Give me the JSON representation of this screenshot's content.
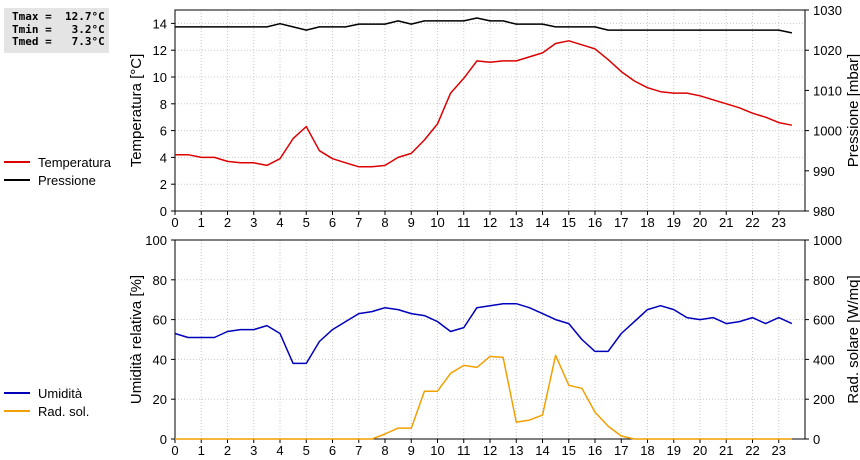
{
  "stats": {
    "tmax": "Tmax =  12.7°C",
    "tmin": "Tmin =   3.2°C",
    "tmed": "Tmed =   7.3°C"
  },
  "legend_top": [
    {
      "label": "Temperatura",
      "color": "#dd0000"
    },
    {
      "label": "Pressione",
      "color": "#000000"
    }
  ],
  "legend_bottom": [
    {
      "label": "Umidità",
      "color": "#0000bb"
    },
    {
      "label": "Rad. sol.",
      "color": "#f0a000"
    }
  ],
  "chart_data": [
    {
      "type": "line",
      "x": [
        0,
        0.5,
        1,
        1.5,
        2,
        2.5,
        3,
        3.5,
        4,
        4.5,
        5,
        5.5,
        6,
        6.5,
        7,
        7.5,
        8,
        8.5,
        9,
        9.5,
        10,
        10.5,
        11,
        11.5,
        12,
        12.5,
        13,
        13.5,
        14,
        14.5,
        15,
        15.5,
        16,
        16.5,
        17,
        17.5,
        18,
        18.5,
        19,
        19.5,
        20,
        20.5,
        21,
        21.5,
        22,
        22.5,
        23,
        23.5
      ],
      "xticks": [
        0,
        1,
        2,
        3,
        4,
        5,
        6,
        7,
        8,
        9,
        10,
        11,
        12,
        13,
        14,
        15,
        16,
        17,
        18,
        19,
        20,
        21,
        22,
        23
      ],
      "xlim": [
        0,
        24
      ],
      "ylabel": "Temperatura [°C]",
      "ylim": [
        0,
        15
      ],
      "yticks": [
        0,
        2,
        4,
        6,
        8,
        10,
        12,
        14
      ],
      "y2label": "Pressione [mbar]",
      "y2lim": [
        980,
        1030
      ],
      "y2ticks": [
        980,
        990,
        1000,
        1010,
        1020,
        1030
      ],
      "grid": true,
      "series": [
        {
          "name": "Temperatura",
          "axis": "left",
          "color": "#dd0000",
          "values": [
            4.2,
            4.2,
            4.0,
            4.0,
            3.7,
            3.6,
            3.6,
            3.4,
            3.9,
            5.4,
            6.3,
            4.5,
            3.9,
            3.6,
            3.3,
            3.3,
            3.4,
            4.0,
            4.3,
            5.3,
            6.5,
            8.8,
            9.9,
            11.2,
            11.1,
            11.2,
            11.2,
            11.5,
            11.8,
            12.5,
            12.7,
            12.4,
            12.1,
            11.3,
            10.4,
            9.7,
            9.2,
            8.9,
            8.8,
            8.8,
            8.6,
            8.3,
            8.0,
            7.7,
            7.3,
            7.0,
            6.6,
            6.4
          ]
        },
        {
          "name": "Pressione",
          "axis": "right",
          "color": "#000000",
          "values": [
            1025.8,
            1025.8,
            1025.8,
            1025.8,
            1025.8,
            1025.8,
            1025.8,
            1025.8,
            1026.6,
            1025.8,
            1025.0,
            1025.8,
            1025.8,
            1025.8,
            1026.5,
            1026.5,
            1026.5,
            1027.3,
            1026.5,
            1027.3,
            1027.3,
            1027.3,
            1027.3,
            1028.0,
            1027.3,
            1027.3,
            1026.5,
            1026.5,
            1026.5,
            1025.8,
            1025.8,
            1025.8,
            1025.8,
            1025.0,
            1025.0,
            1025.0,
            1025.0,
            1025.0,
            1025.0,
            1025.0,
            1025.0,
            1025.0,
            1025.0,
            1025.0,
            1025.0,
            1025.0,
            1025.0,
            1024.3
          ]
        }
      ]
    },
    {
      "type": "line",
      "x": [
        0,
        0.5,
        1,
        1.5,
        2,
        2.5,
        3,
        3.5,
        4,
        4.5,
        5,
        5.5,
        6,
        6.5,
        7,
        7.5,
        8,
        8.5,
        9,
        9.5,
        10,
        10.5,
        11,
        11.5,
        12,
        12.5,
        13,
        13.5,
        14,
        14.5,
        15,
        15.5,
        16,
        16.5,
        17,
        17.5,
        18,
        18.5,
        19,
        19.5,
        20,
        20.5,
        21,
        21.5,
        22,
        22.5,
        23,
        23.5
      ],
      "xticks": [
        0,
        1,
        2,
        3,
        4,
        5,
        6,
        7,
        8,
        9,
        10,
        11,
        12,
        13,
        14,
        15,
        16,
        17,
        18,
        19,
        20,
        21,
        22,
        23
      ],
      "xlim": [
        0,
        24
      ],
      "ylabel": "Umidità relativa [%]",
      "ylim": [
        0,
        100
      ],
      "yticks": [
        0,
        20,
        40,
        60,
        80,
        100
      ],
      "y2label": "Rad. solare [W/mq]",
      "y2lim": [
        0,
        1000
      ],
      "y2ticks": [
        0,
        200,
        400,
        600,
        800,
        1000
      ],
      "grid": true,
      "series": [
        {
          "name": "Umidità",
          "axis": "left",
          "color": "#0000bb",
          "values": [
            53,
            51,
            51,
            51,
            54,
            55,
            55,
            57,
            53,
            38,
            38,
            49,
            55,
            59,
            63,
            64,
            66,
            65,
            63,
            62,
            59,
            54,
            56,
            66,
            67,
            68,
            68,
            66,
            63,
            60,
            58,
            50,
            44,
            44,
            53,
            59,
            65,
            67,
            65,
            61,
            60,
            61,
            58,
            59,
            61,
            58,
            61,
            58
          ]
        },
        {
          "name": "Rad. sol.",
          "axis": "right",
          "color": "#f0a000",
          "values": [
            0,
            0,
            0,
            0,
            0,
            0,
            0,
            0,
            0,
            0,
            0,
            0,
            0,
            0,
            0,
            0,
            25,
            55,
            55,
            240,
            240,
            330,
            370,
            360,
            415,
            410,
            85,
            95,
            120,
            420,
            270,
            255,
            135,
            65,
            15,
            0,
            0,
            0,
            0,
            0,
            0,
            0,
            0,
            0,
            0,
            0,
            0,
            0
          ]
        }
      ]
    }
  ]
}
